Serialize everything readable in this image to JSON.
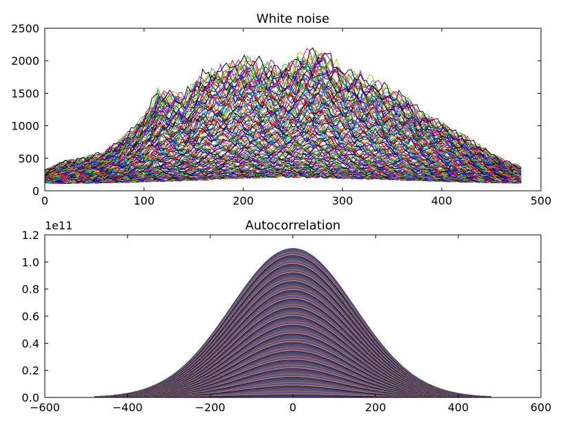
{
  "chart_data": [
    {
      "type": "line",
      "title": "White noise",
      "xlabel": "",
      "ylabel": "",
      "xlim": [
        0,
        500
      ],
      "ylim": [
        0,
        2500
      ],
      "xticks": [
        "0",
        "100",
        "200",
        "300",
        "400",
        "500"
      ],
      "yticks": [
        "0",
        "500",
        "1000",
        "1500",
        "2000",
        "2500"
      ],
      "x_range": [
        0,
        480
      ],
      "series_count_estimate": 400,
      "envelope": {
        "x": [
          0,
          20,
          40,
          60,
          80,
          100,
          115,
          140,
          160,
          180,
          200,
          220,
          240,
          260,
          280,
          300,
          320,
          340,
          360,
          380,
          400,
          420,
          440,
          460,
          480
        ],
        "max_y": [
          320,
          470,
          520,
          620,
          850,
          1200,
          1620,
          1550,
          1900,
          2000,
          2150,
          2050,
          2000,
          2200,
          2280,
          1950,
          1850,
          1700,
          1550,
          1250,
          1100,
          900,
          700,
          500,
          380
        ],
        "min_y": [
          130,
          125,
          130,
          135,
          140,
          150,
          160,
          170,
          180,
          200,
          210,
          220,
          230,
          225,
          215,
          210,
          200,
          190,
          180,
          170,
          160,
          150,
          140,
          135,
          130
        ]
      },
      "line_colors": [
        "#0000ff",
        "#008000",
        "#ff0000",
        "#00bfbf",
        "#bf00bf",
        "#bfbf00",
        "#000000"
      ]
    },
    {
      "type": "area",
      "title": "Autocorrelation",
      "xlabel": "",
      "ylabel": "",
      "xlim": [
        -600,
        600
      ],
      "ylim": [
        0,
        1.2
      ],
      "offset_text": "1e11",
      "xticks": [
        "−600",
        "−400",
        "−200",
        "0",
        "200",
        "400",
        "600"
      ],
      "yticks": [
        "0.0",
        "0.2",
        "0.4",
        "0.6",
        "0.8",
        "1.0",
        "1.2"
      ],
      "x_range": [
        -480,
        480
      ],
      "peak": {
        "x": 0,
        "y": 1.1
      },
      "curve_width_sigma": 150,
      "stack_count_estimate": 120,
      "line_colors": [
        "#0000ff",
        "#008000",
        "#ff0000",
        "#00bfbf",
        "#bf00bf",
        "#bfbf00",
        "#000000"
      ]
    }
  ]
}
